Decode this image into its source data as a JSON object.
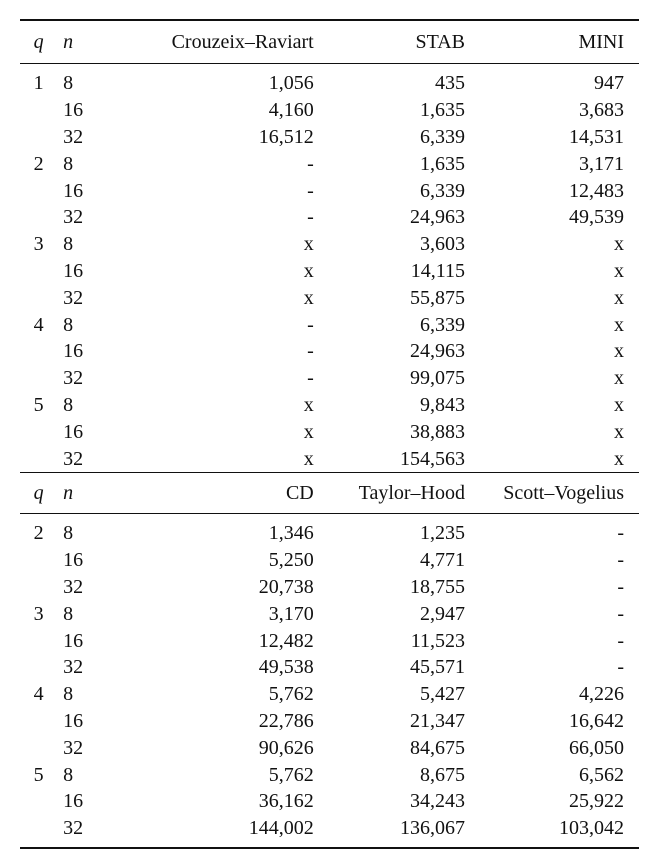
{
  "table1": {
    "headers": [
      "q",
      "n",
      "Crouzeix–Raviart",
      "STAB",
      "MINI"
    ],
    "rows": [
      [
        "1",
        "8",
        "1,056",
        "435",
        "947"
      ],
      [
        "",
        "16",
        "4,160",
        "1,635",
        "3,683"
      ],
      [
        "",
        "32",
        "16,512",
        "6,339",
        "14,531"
      ],
      [
        "2",
        "8",
        "-",
        "1,635",
        "3,171"
      ],
      [
        "",
        "16",
        "-",
        "6,339",
        "12,483"
      ],
      [
        "",
        "32",
        "-",
        "24,963",
        "49,539"
      ],
      [
        "3",
        "8",
        "x",
        "3,603",
        "x"
      ],
      [
        "",
        "16",
        "x",
        "14,115",
        "x"
      ],
      [
        "",
        "32",
        "x",
        "55,875",
        "x"
      ],
      [
        "4",
        "8",
        "-",
        "6,339",
        "x"
      ],
      [
        "",
        "16",
        "-",
        "24,963",
        "x"
      ],
      [
        "",
        "32",
        "-",
        "99,075",
        "x"
      ],
      [
        "5",
        "8",
        "x",
        "9,843",
        "x"
      ],
      [
        "",
        "16",
        "x",
        "38,883",
        "x"
      ],
      [
        "",
        "32",
        "x",
        "154,563",
        "x"
      ]
    ]
  },
  "table2": {
    "headers": [
      "q",
      "n",
      "CD",
      "Taylor–Hood",
      "Scott–Vogelius"
    ],
    "rows": [
      [
        "2",
        "8",
        "1,346",
        "1,235",
        "-"
      ],
      [
        "",
        "16",
        "5,250",
        "4,771",
        "-"
      ],
      [
        "",
        "32",
        "20,738",
        "18,755",
        "-"
      ],
      [
        "3",
        "8",
        "3,170",
        "2,947",
        "-"
      ],
      [
        "",
        "16",
        "12,482",
        "11,523",
        "-"
      ],
      [
        "",
        "32",
        "49,538",
        "45,571",
        "-"
      ],
      [
        "4",
        "8",
        "5,762",
        "5,427",
        "4,226"
      ],
      [
        "",
        "16",
        "22,786",
        "21,347",
        "16,642"
      ],
      [
        "",
        "32",
        "90,626",
        "84,675",
        "66,050"
      ],
      [
        "5",
        "8",
        "5,762",
        "8,675",
        "6,562"
      ],
      [
        "",
        "16",
        "36,162",
        "34,243",
        "25,922"
      ],
      [
        "",
        "32",
        "144,002",
        "136,067",
        "103,042"
      ]
    ]
  }
}
